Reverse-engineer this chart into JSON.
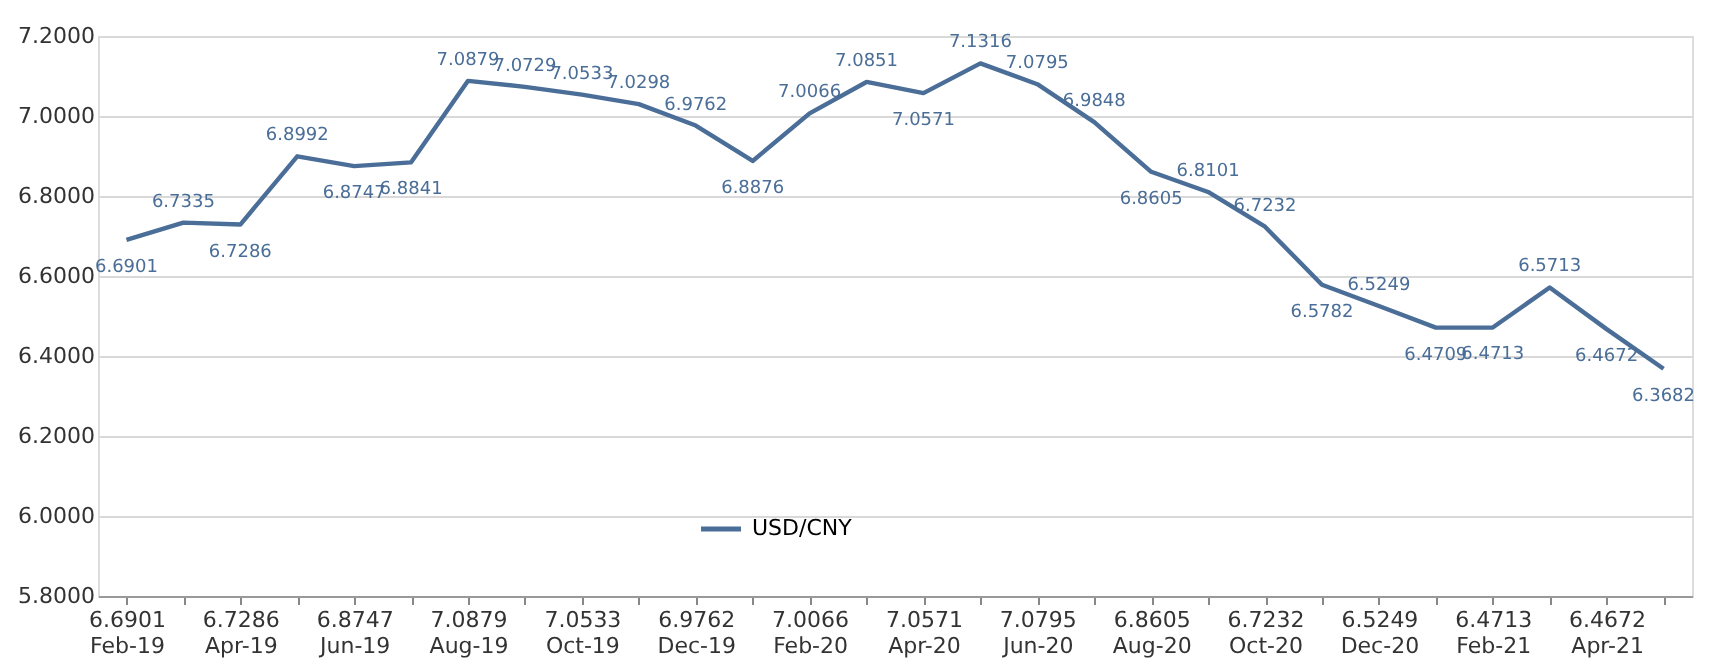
{
  "chart_data": {
    "type": "line",
    "categories": [
      "6.6901\nFeb-19",
      null,
      "6.7286\nApr-19",
      null,
      "6.8747\nJun-19",
      null,
      "7.0879\nAug-19",
      null,
      "7.0533\nOct-19",
      null,
      "6.9762\nDec-19",
      null,
      "7.0066\nFeb-20",
      null,
      "7.0571\nApr-20",
      null,
      "7.0795\nJun-20",
      null,
      "6.8605\nAug-20",
      null,
      "6.7232\nOct-20",
      null,
      "6.5249\nDec-20",
      null,
      "6.4713\nFeb-21",
      null,
      "6.4672\nApr-21",
      null
    ],
    "series": [
      {
        "name": "USD/CNY",
        "color": "#4a6e97",
        "values": [
          6.6901,
          6.7335,
          6.7286,
          6.8992,
          6.8747,
          6.8841,
          7.0879,
          7.0729,
          7.0533,
          7.0298,
          6.9762,
          6.8876,
          7.0066,
          7.0851,
          7.0571,
          7.1316,
          7.0795,
          6.9848,
          6.8605,
          6.8101,
          6.7232,
          6.5782,
          6.5249,
          6.4709,
          6.4713,
          6.5713,
          6.4672,
          6.3682
        ]
      }
    ],
    "ylim": [
      5.8,
      7.2
    ],
    "yticks": [
      {
        "value": 5.8,
        "label": "5.8000"
      },
      {
        "value": 6.0,
        "label": "6.0000"
      },
      {
        "value": 6.2,
        "label": "6.2000"
      },
      {
        "value": 6.4,
        "label": "6.4000"
      },
      {
        "value": 6.6,
        "label": "6.6000"
      },
      {
        "value": 6.8,
        "label": "6.8000"
      },
      {
        "value": 7.0,
        "label": "7.0000"
      },
      {
        "value": 7.2,
        "label": "7.2000"
      }
    ],
    "grid": "y",
    "legend": "bottom",
    "data_labels": true,
    "marker": "none",
    "line_style": "solid"
  }
}
